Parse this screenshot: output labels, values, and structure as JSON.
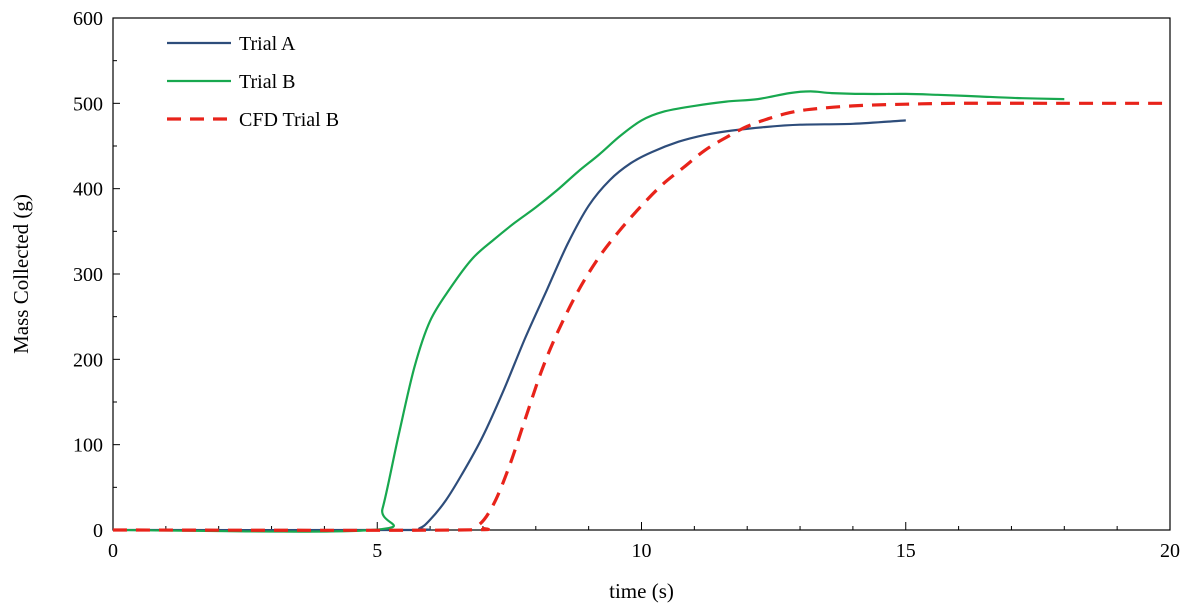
{
  "chart_data": {
    "type": "line",
    "title": "",
    "xlabel": "time (s)",
    "ylabel": "Mass Collected (g)",
    "xlim": [
      0,
      20
    ],
    "ylim": [
      0,
      600
    ],
    "x_ticks": [
      0,
      5,
      10,
      15,
      20
    ],
    "y_ticks": [
      0,
      100,
      200,
      300,
      400,
      500,
      600
    ],
    "x_tick_labels": [
      "0",
      "5",
      "10",
      "15",
      "20"
    ],
    "y_tick_labels": [
      "0",
      "100",
      "200",
      "300",
      "400",
      "500",
      "600"
    ],
    "grid": false,
    "legend_position": "top-left",
    "series": [
      {
        "name": "Trial A",
        "color": "#2e4d7b",
        "dash": "solid",
        "points": [
          [
            0,
            0
          ],
          [
            5.5,
            0
          ],
          [
            5.8,
            2
          ],
          [
            6,
            12
          ],
          [
            6.3,
            35
          ],
          [
            6.6,
            65
          ],
          [
            7,
            110
          ],
          [
            7.4,
            165
          ],
          [
            7.8,
            225
          ],
          [
            8.2,
            280
          ],
          [
            8.6,
            335
          ],
          [
            9,
            380
          ],
          [
            9.4,
            410
          ],
          [
            9.8,
            430
          ],
          [
            10.2,
            443
          ],
          [
            10.7,
            455
          ],
          [
            11.2,
            463
          ],
          [
            11.7,
            468
          ],
          [
            12.3,
            472
          ],
          [
            13,
            475
          ],
          [
            14,
            476
          ],
          [
            15,
            480
          ]
        ]
      },
      {
        "name": "Trial B",
        "color": "#18a84f",
        "dash": "solid",
        "points": [
          [
            0,
            0
          ],
          [
            4.9,
            0
          ],
          [
            5.1,
            25
          ],
          [
            5.4,
            110
          ],
          [
            5.7,
            190
          ],
          [
            6,
            245
          ],
          [
            6.4,
            285
          ],
          [
            6.8,
            318
          ],
          [
            7.2,
            340
          ],
          [
            7.6,
            360
          ],
          [
            8,
            378
          ],
          [
            8.4,
            398
          ],
          [
            8.8,
            420
          ],
          [
            9.2,
            440
          ],
          [
            9.6,
            462
          ],
          [
            10,
            480
          ],
          [
            10.4,
            490
          ],
          [
            11,
            497
          ],
          [
            11.6,
            502
          ],
          [
            12.2,
            505
          ],
          [
            12.8,
            512
          ],
          [
            13.2,
            514
          ],
          [
            13.6,
            512
          ],
          [
            14.2,
            511
          ],
          [
            15,
            511
          ],
          [
            15.6,
            510
          ],
          [
            16.4,
            508
          ],
          [
            17.2,
            506
          ],
          [
            18,
            505
          ]
        ]
      },
      {
        "name": "CFD Trial B",
        "color": "#e8231a",
        "dash": "dashed",
        "points": [
          [
            0,
            0
          ],
          [
            6.5,
            0
          ],
          [
            6.9,
            5
          ],
          [
            7.2,
            30
          ],
          [
            7.5,
            75
          ],
          [
            7.8,
            130
          ],
          [
            8.1,
            185
          ],
          [
            8.4,
            230
          ],
          [
            8.8,
            280
          ],
          [
            9.2,
            320
          ],
          [
            9.6,
            352
          ],
          [
            10,
            380
          ],
          [
            10.4,
            405
          ],
          [
            10.8,
            425
          ],
          [
            11.2,
            445
          ],
          [
            11.6,
            460
          ],
          [
            12,
            473
          ],
          [
            12.4,
            482
          ],
          [
            12.8,
            489
          ],
          [
            13.2,
            493
          ],
          [
            14,
            497
          ],
          [
            15,
            499
          ],
          [
            16,
            500
          ],
          [
            18,
            500
          ],
          [
            20,
            500
          ]
        ]
      }
    ]
  }
}
